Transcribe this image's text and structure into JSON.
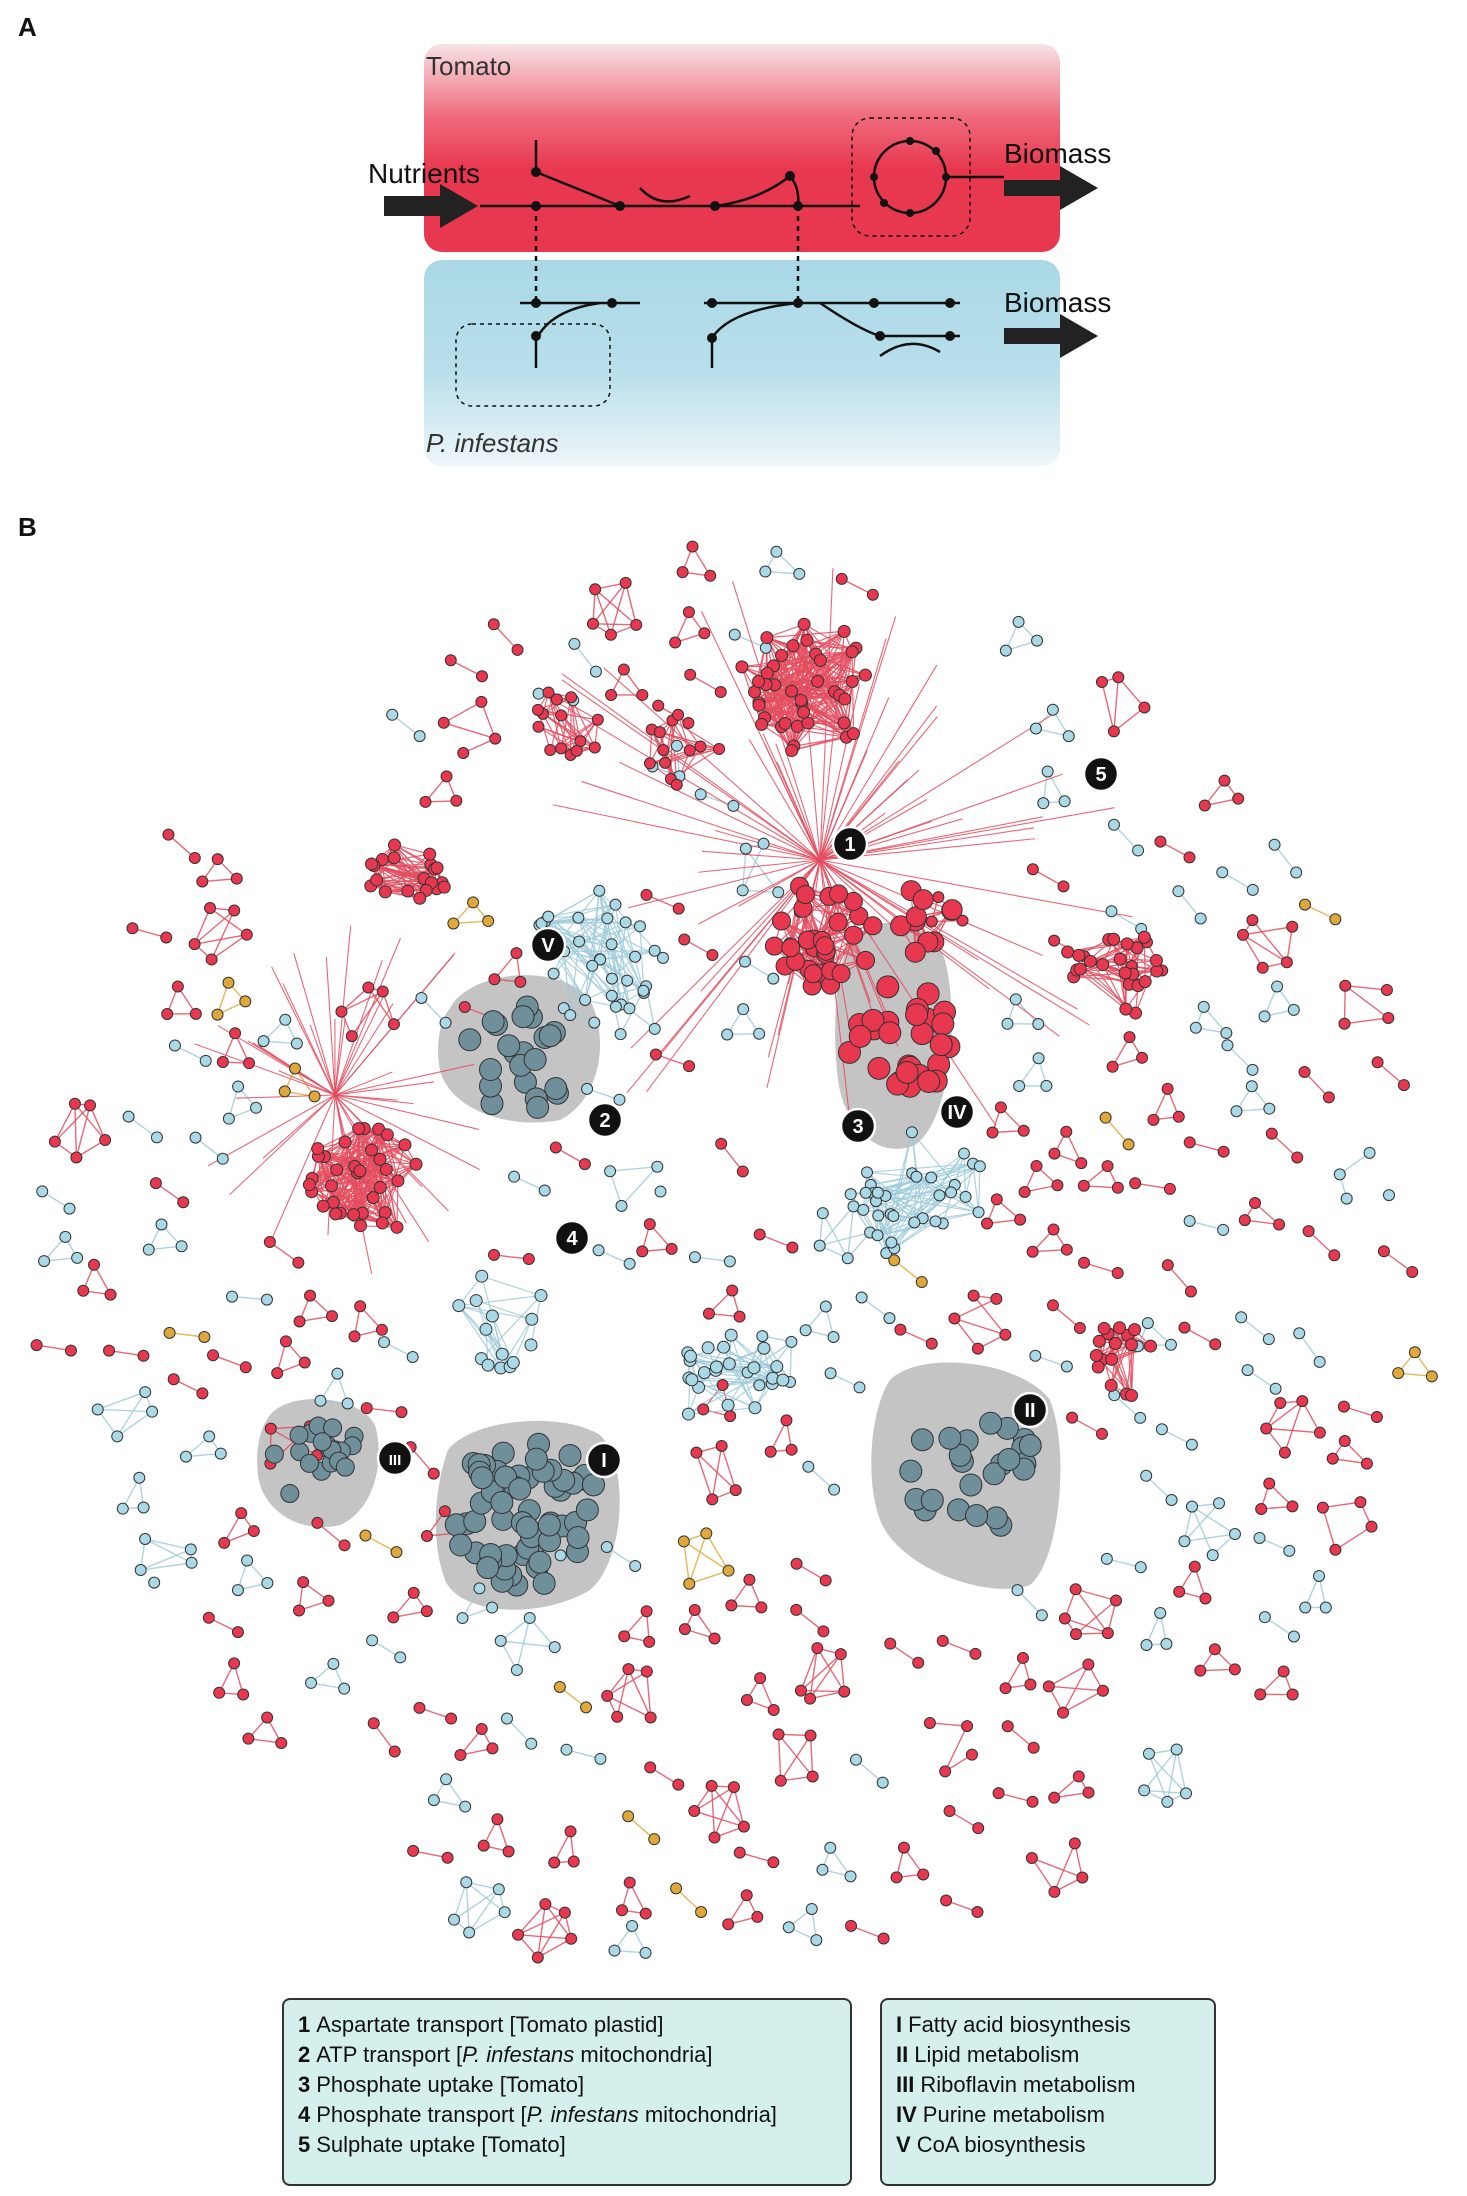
{
  "panel_a": {
    "letter": "A",
    "tomato_label": "Tomato",
    "pathogen_label_italic": "P. infestans",
    "nutrients_label": "Nutrients",
    "biomass_label_top": "Biomass",
    "biomass_label_bottom": "Biomass",
    "colors": {
      "tomato": "#e8384f",
      "pathogen": "#a9d8e6"
    }
  },
  "panel_b": {
    "letter": "B",
    "colors": {
      "tomato": "#e8384f",
      "pathogen": "#a9d8e6",
      "transport": "#e0a83a",
      "module_node": "#6f8f9a",
      "module_hull": "#9c9c9c"
    },
    "markers": [
      {
        "label": "1"
      },
      {
        "label": "2"
      },
      {
        "label": "3"
      },
      {
        "label": "4"
      },
      {
        "label": "5"
      },
      {
        "label": "I"
      },
      {
        "label": "II"
      },
      {
        "label": "III"
      },
      {
        "label": "IV"
      },
      {
        "label": "V"
      }
    ]
  },
  "legend_reactions": [
    {
      "num": "1",
      "pre": "Aspartate transport [Tomato plastid]",
      "ital": "",
      "post": ""
    },
    {
      "num": "2",
      "pre": "ATP transport [",
      "ital": "P. infestans",
      "post": " mitochondria]"
    },
    {
      "num": "3",
      "pre": "Phosphate uptake [Tomato]",
      "ital": "",
      "post": ""
    },
    {
      "num": "4",
      "pre": "Phosphate transport [",
      "ital": "P. infestans",
      "post": " mitochondria]"
    },
    {
      "num": "5",
      "pre": "Sulphate uptake [Tomato]",
      "ital": "",
      "post": ""
    }
  ],
  "legend_modules": [
    {
      "num": "I",
      "label": "Fatty acid biosynthesis"
    },
    {
      "num": "II",
      "label": "Lipid metabolism"
    },
    {
      "num": "III",
      "label": "Riboflavin metabolism"
    },
    {
      "num": "IV",
      "label": "Purine metabolism"
    },
    {
      "num": "V",
      "label": "CoA biosynthesis"
    }
  ]
}
